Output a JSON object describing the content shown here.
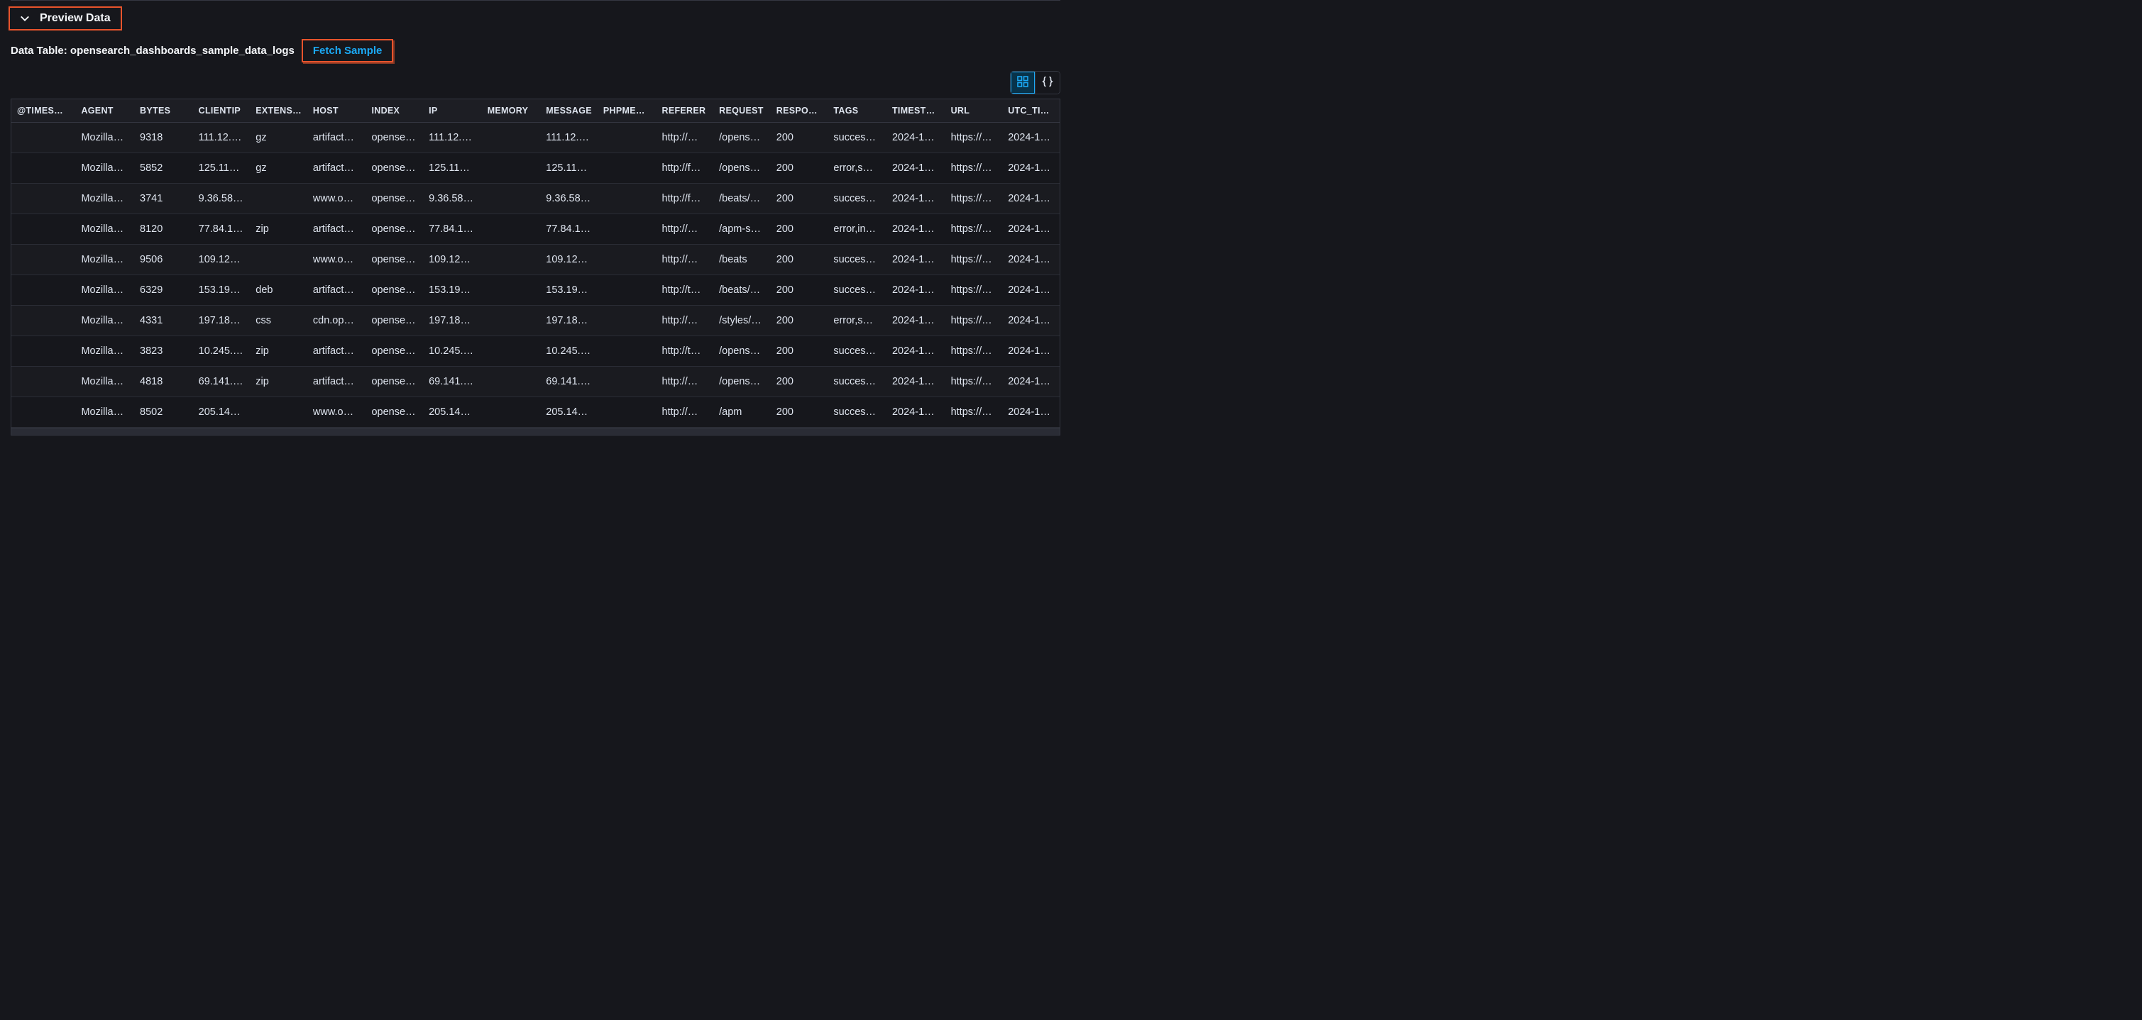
{
  "colors": {
    "background": "#16171c",
    "text": "#dfe5ef",
    "header_bg": "#1d1e24",
    "border": "#343741",
    "row_odd": "#1a1b20",
    "row_even": "#16171c",
    "highlight_border": "#e8542c",
    "link": "#1ba9f5",
    "active_toggle_bg": "#08334a"
  },
  "preview": {
    "title": "Preview Data"
  },
  "subhead": {
    "label": "Data Table: opensearch_dashboards_sample_data_logs",
    "fetch_label": "Fetch Sample"
  },
  "view_toggle": {
    "grid_icon": "grid-icon",
    "json_icon": "braces-icon",
    "active": "grid"
  },
  "table": {
    "columns": [
      "@TIMES…",
      "AGENT",
      "BYTES",
      "CLIENTIP",
      "EXTENS…",
      "HOST",
      "INDEX",
      "IP",
      "MEMORY",
      "MESSAGE",
      "PHPME…",
      "REFERER",
      "REQUEST",
      "RESPON…",
      "TAGS",
      "TIMEST…",
      "URL",
      "UTC_TI…"
    ],
    "rows": [
      {
        "ts": "",
        "agent": "Mozilla…",
        "bytes": "9318",
        "clientip": "111.12.…",
        "ext": "gz",
        "host": "artifact…",
        "index": "opense…",
        "ip": "111.12.…",
        "memory": "",
        "message": "111.12.…",
        "php": "",
        "referer": "http://…",
        "request": "/opens…",
        "response": "200",
        "tags": "success…",
        "timestamp": "2024-1…",
        "url": "https://…",
        "utc": "2024-1…"
      },
      {
        "ts": "",
        "agent": "Mozilla…",
        "bytes": "5852",
        "clientip": "125.11…",
        "ext": "gz",
        "host": "artifact…",
        "index": "opense…",
        "ip": "125.11…",
        "memory": "",
        "message": "125.11…",
        "php": "",
        "referer": "http://f…",
        "request": "/opens…",
        "response": "200",
        "tags": "error,s…",
        "timestamp": "2024-1…",
        "url": "https://…",
        "utc": "2024-1…"
      },
      {
        "ts": "",
        "agent": "Mozilla…",
        "bytes": "3741",
        "clientip": "9.36.58…",
        "ext": "",
        "host": "www.o…",
        "index": "opense…",
        "ip": "9.36.58…",
        "memory": "",
        "message": "9.36.58…",
        "php": "",
        "referer": "http://f…",
        "request": "/beats/…",
        "response": "200",
        "tags": "success…",
        "timestamp": "2024-1…",
        "url": "https://…",
        "utc": "2024-1…"
      },
      {
        "ts": "",
        "agent": "Mozilla…",
        "bytes": "8120",
        "clientip": "77.84.1…",
        "ext": "zip",
        "host": "artifact…",
        "index": "opense…",
        "ip": "77.84.1…",
        "memory": "",
        "message": "77.84.1…",
        "php": "",
        "referer": "http://…",
        "request": "/apm-s…",
        "response": "200",
        "tags": "error,in…",
        "timestamp": "2024-1…",
        "url": "https://…",
        "utc": "2024-1…"
      },
      {
        "ts": "",
        "agent": "Mozilla…",
        "bytes": "9506",
        "clientip": "109.12…",
        "ext": "",
        "host": "www.o…",
        "index": "opense…",
        "ip": "109.12…",
        "memory": "",
        "message": "109.12…",
        "php": "",
        "referer": "http://…",
        "request": "/beats",
        "response": "200",
        "tags": "success…",
        "timestamp": "2024-1…",
        "url": "https://…",
        "utc": "2024-1…"
      },
      {
        "ts": "",
        "agent": "Mozilla…",
        "bytes": "6329",
        "clientip": "153.19…",
        "ext": "deb",
        "host": "artifact…",
        "index": "opense…",
        "ip": "153.19…",
        "memory": "",
        "message": "153.19…",
        "php": "",
        "referer": "http://t…",
        "request": "/beats/…",
        "response": "200",
        "tags": "success…",
        "timestamp": "2024-1…",
        "url": "https://…",
        "utc": "2024-1…"
      },
      {
        "ts": "",
        "agent": "Mozilla…",
        "bytes": "4331",
        "clientip": "197.18…",
        "ext": "css",
        "host": "cdn.op…",
        "index": "opense…",
        "ip": "197.18…",
        "memory": "",
        "message": "197.18…",
        "php": "",
        "referer": "http://…",
        "request": "/styles/…",
        "response": "200",
        "tags": "error,s…",
        "timestamp": "2024-1…",
        "url": "https://…",
        "utc": "2024-1…"
      },
      {
        "ts": "",
        "agent": "Mozilla…",
        "bytes": "3823",
        "clientip": "10.245.…",
        "ext": "zip",
        "host": "artifact…",
        "index": "opense…",
        "ip": "10.245.…",
        "memory": "",
        "message": "10.245.…",
        "php": "",
        "referer": "http://t…",
        "request": "/opens…",
        "response": "200",
        "tags": "success…",
        "timestamp": "2024-1…",
        "url": "https://…",
        "utc": "2024-1…"
      },
      {
        "ts": "",
        "agent": "Mozilla…",
        "bytes": "4818",
        "clientip": "69.141.…",
        "ext": "zip",
        "host": "artifact…",
        "index": "opense…",
        "ip": "69.141.…",
        "memory": "",
        "message": "69.141.…",
        "php": "",
        "referer": "http://…",
        "request": "/opens…",
        "response": "200",
        "tags": "success…",
        "timestamp": "2024-1…",
        "url": "https://…",
        "utc": "2024-1…"
      },
      {
        "ts": "",
        "agent": "Mozilla…",
        "bytes": "8502",
        "clientip": "205.14…",
        "ext": "",
        "host": "www.o…",
        "index": "opense…",
        "ip": "205.14…",
        "memory": "",
        "message": "205.14…",
        "php": "",
        "referer": "http://…",
        "request": "/apm",
        "response": "200",
        "tags": "success…",
        "timestamp": "2024-1…",
        "url": "https://…",
        "utc": "2024-1…"
      }
    ]
  }
}
